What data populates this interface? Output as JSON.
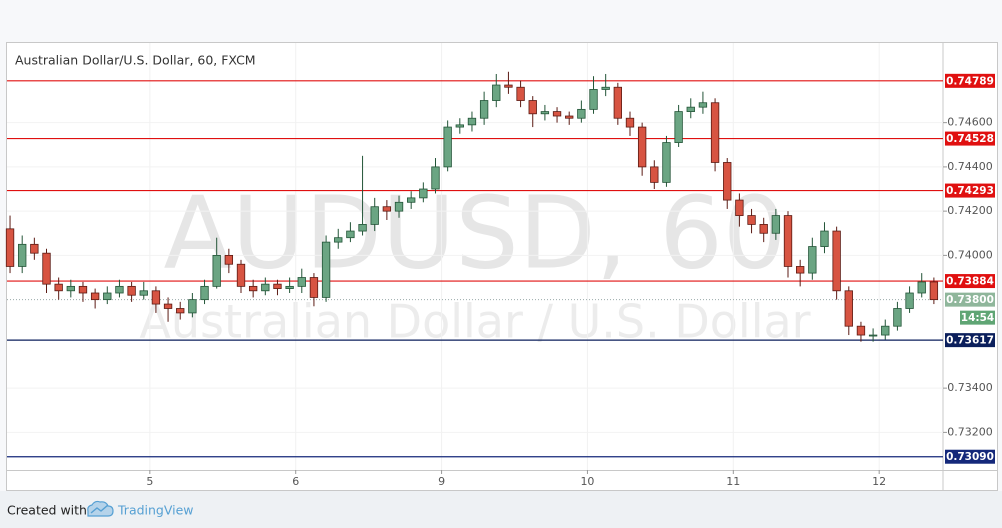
{
  "chart_data": {
    "type": "candlestick",
    "title": "Australian Dollar/U.S. Dollar, 60, FXCM",
    "watermark": "AUDUSD, 60",
    "watermark_subtitle": "Australian Dollar / U.S. Dollar",
    "up_color": "#6ba583",
    "down_color": "#d75442",
    "xlim": [
      0.5,
      154.5
    ],
    "ylim": [
      0.7303,
      0.7496
    ],
    "xticks": [
      {
        "value": 24,
        "label": "5"
      },
      {
        "value": 48,
        "label": "6"
      },
      {
        "value": 72,
        "label": "9"
      },
      {
        "value": 96,
        "label": "10"
      },
      {
        "value": 120,
        "label": "11"
      },
      {
        "value": 144,
        "label": "12"
      }
    ],
    "yticks": [
      {
        "value": 0.746,
        "label": "0.74600"
      },
      {
        "value": 0.744,
        "label": "0.74400"
      },
      {
        "value": 0.742,
        "label": "0.74200"
      },
      {
        "value": 0.74,
        "label": "0.74000"
      },
      {
        "value": 0.734,
        "label": "0.73400"
      },
      {
        "value": 0.732,
        "label": "0.73200"
      }
    ],
    "x": [
      1,
      3,
      5,
      7,
      9,
      11,
      13,
      15,
      17,
      19,
      21,
      23,
      25,
      27,
      29,
      31,
      33,
      35,
      37,
      39,
      41,
      43,
      45,
      47,
      49,
      51,
      53,
      55,
      57,
      59,
      61,
      63,
      65,
      67,
      69,
      71,
      73,
      75,
      77,
      79,
      81,
      83,
      85,
      87,
      89,
      91,
      93,
      95,
      97,
      99,
      101,
      103,
      105,
      107,
      109,
      111,
      113,
      115,
      117,
      119,
      121,
      123,
      125,
      127,
      129,
      131,
      133,
      135,
      137,
      139,
      141,
      143,
      145,
      147,
      149,
      151,
      153
    ],
    "open": [
      0.7412,
      0.7395,
      0.7405,
      0.7401,
      0.7387,
      0.7384,
      0.7386,
      0.7383,
      0.738,
      0.7383,
      0.7386,
      0.7382,
      0.7384,
      0.7378,
      0.7376,
      0.7374,
      0.738,
      0.7386,
      0.74,
      0.7396,
      0.7386,
      0.7384,
      0.7387,
      0.7385,
      0.7386,
      0.739,
      0.7381,
      0.7406,
      0.7408,
      0.7411,
      0.7414,
      0.7422,
      0.742,
      0.7424,
      0.7426,
      0.743,
      0.744,
      0.7458,
      0.7459,
      0.7462,
      0.747,
      0.7477,
      0.7476,
      0.747,
      0.7464,
      0.7465,
      0.7463,
      0.7462,
      0.7466,
      0.7475,
      0.7476,
      0.7462,
      0.7458,
      0.744,
      0.7433,
      0.7451,
      0.7465,
      0.7467,
      0.7469,
      0.7442,
      0.7425,
      0.7418,
      0.7414,
      0.741,
      0.7418,
      0.7395,
      0.7392,
      0.7404,
      0.7411,
      0.7384,
      0.7368,
      0.7364,
      0.7364,
      0.7368,
      0.7376,
      0.7383,
      0.7388
    ],
    "high": [
      0.7418,
      0.7409,
      0.7408,
      0.7403,
      0.739,
      0.7389,
      0.7388,
      0.7385,
      0.7386,
      0.7389,
      0.7388,
      0.7388,
      0.7386,
      0.7381,
      0.7379,
      0.7383,
      0.7389,
      0.7408,
      0.7403,
      0.7398,
      0.7389,
      0.739,
      0.7389,
      0.739,
      0.7394,
      0.7392,
      0.7409,
      0.7412,
      0.7415,
      0.7445,
      0.7426,
      0.7425,
      0.7427,
      0.7429,
      0.7433,
      0.7444,
      0.7461,
      0.7462,
      0.7465,
      0.7474,
      0.7482,
      0.7483,
      0.7479,
      0.7472,
      0.7468,
      0.7467,
      0.7465,
      0.747,
      0.7481,
      0.7482,
      0.7478,
      0.7465,
      0.746,
      0.7443,
      0.7454,
      0.7468,
      0.7471,
      0.7474,
      0.7471,
      0.7444,
      0.7428,
      0.7421,
      0.7417,
      0.7421,
      0.742,
      0.7398,
      0.7408,
      0.7415,
      0.7413,
      0.7386,
      0.737,
      0.7367,
      0.7371,
      0.7379,
      0.7386,
      0.7392,
      0.739
    ],
    "low": [
      0.7392,
      0.7392,
      0.7398,
      0.7383,
      0.738,
      0.7381,
      0.7379,
      0.7376,
      0.7378,
      0.7381,
      0.7379,
      0.738,
      0.7374,
      0.737,
      0.7371,
      0.7372,
      0.7378,
      0.7385,
      0.7392,
      0.7383,
      0.7381,
      0.7382,
      0.7382,
      0.7383,
      0.7383,
      0.7377,
      0.7379,
      0.7403,
      0.7406,
      0.7409,
      0.7411,
      0.7416,
      0.7417,
      0.7421,
      0.7424,
      0.7428,
      0.7438,
      0.7455,
      0.7456,
      0.7459,
      0.7467,
      0.7473,
      0.7467,
      0.7458,
      0.7461,
      0.746,
      0.7459,
      0.746,
      0.7464,
      0.7472,
      0.7459,
      0.7454,
      0.7436,
      0.743,
      0.7431,
      0.7449,
      0.7462,
      0.7464,
      0.7438,
      0.7421,
      0.7413,
      0.741,
      0.7406,
      0.7407,
      0.739,
      0.7386,
      0.7389,
      0.7401,
      0.738,
      0.7364,
      0.7361,
      0.7361,
      0.7362,
      0.7366,
      0.7374,
      0.7381,
      0.7378
    ],
    "close": [
      0.7395,
      0.7405,
      0.7401,
      0.7387,
      0.7384,
      0.7386,
      0.7383,
      0.738,
      0.7383,
      0.7386,
      0.7382,
      0.7384,
      0.7378,
      0.7376,
      0.7374,
      0.738,
      0.7386,
      0.74,
      0.7396,
      0.7386,
      0.7384,
      0.7387,
      0.7385,
      0.7386,
      0.739,
      0.7381,
      0.7406,
      0.7408,
      0.7411,
      0.7414,
      0.7422,
      0.742,
      0.7424,
      0.7426,
      0.743,
      0.744,
      0.7458,
      0.7459,
      0.7462,
      0.747,
      0.7477,
      0.7476,
      0.747,
      0.7464,
      0.7465,
      0.7463,
      0.7462,
      0.7466,
      0.7475,
      0.7476,
      0.7462,
      0.7458,
      0.744,
      0.7433,
      0.7451,
      0.7465,
      0.7467,
      0.7469,
      0.7442,
      0.7425,
      0.7418,
      0.7414,
      0.741,
      0.7418,
      0.7395,
      0.7392,
      0.7404,
      0.7411,
      0.7384,
      0.7368,
      0.7364,
      0.7364,
      0.7368,
      0.7376,
      0.7383,
      0.7388,
      0.738
    ],
    "levels": [
      {
        "value": 0.74789,
        "color": "#e01010"
      },
      {
        "value": 0.74528,
        "color": "#e01010"
      },
      {
        "value": 0.74293,
        "color": "#e01010"
      },
      {
        "value": 0.73884,
        "color": "#e01010"
      },
      {
        "value": 0.73617,
        "color": "#0b1f5c"
      },
      {
        "value": 0.7309,
        "label": "0.73090",
        "color": "#14287a"
      }
    ],
    "current_price": {
      "value": 0.738,
      "label": "0.73800",
      "color": "#8fb69b"
    },
    "countdown": "14:54",
    "countdown_color": "#5fa574",
    "footer": {
      "created_with": "Created with",
      "brand": "TradingView"
    }
  }
}
